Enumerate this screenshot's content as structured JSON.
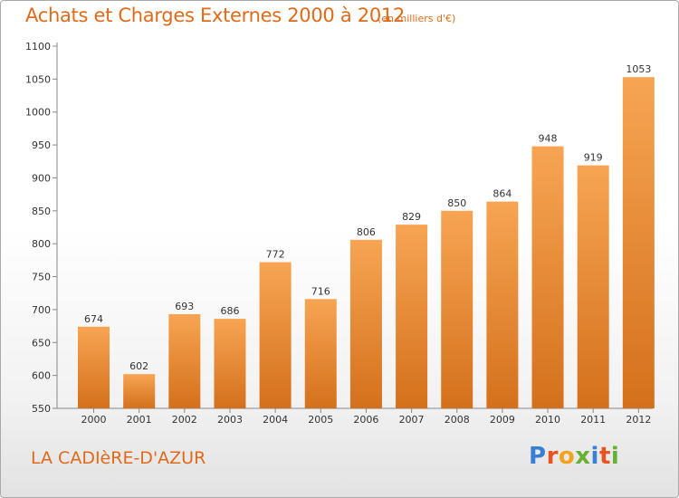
{
  "header": {
    "title": "Achats et Charges Externes 2000 à 2012",
    "unit_note": "(en milliers d'€)"
  },
  "footer": {
    "commune": "LA CADIèRE-D'AZUR",
    "logo_text": "Proxiti",
    "logo_colors": [
      "#3a7fd5",
      "#e8531f",
      "#f2a21b",
      "#66b132",
      "#3a7fd5",
      "#e8531f",
      "#66b132"
    ]
  },
  "chart_data": {
    "type": "bar",
    "title": "Achats et Charges Externes 2000 à 2012",
    "xlabel": "",
    "ylabel": "",
    "categories": [
      "2000",
      "2001",
      "2002",
      "2003",
      "2004",
      "2005",
      "2006",
      "2007",
      "2008",
      "2009",
      "2010",
      "2011",
      "2012"
    ],
    "values": [
      674,
      602,
      693,
      686,
      772,
      716,
      806,
      829,
      850,
      864,
      948,
      919,
      1053
    ],
    "ylim": [
      550,
      1100
    ],
    "yticks": [
      550,
      600,
      650,
      700,
      750,
      800,
      850,
      900,
      950,
      1000,
      1050,
      1100
    ],
    "grid": false,
    "bar_color_top": "#f7a553",
    "bar_color_bottom": "#d4701c"
  }
}
